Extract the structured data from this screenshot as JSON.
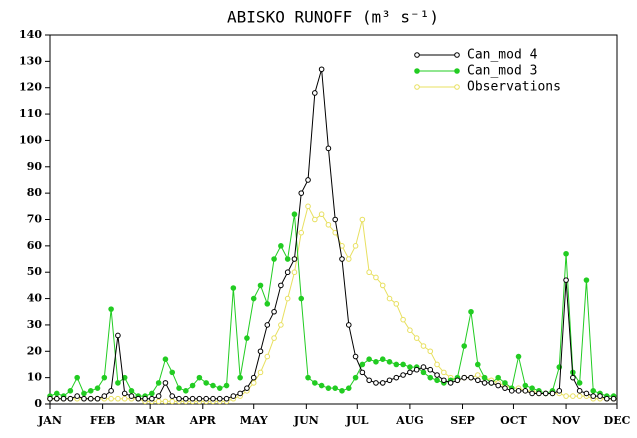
{
  "chart_data": {
    "type": "line",
    "title": "ABISKO RUNOFF (m³ s⁻¹)",
    "x": [
      1,
      5,
      9,
      13,
      17,
      21,
      25,
      29,
      33,
      37,
      41,
      45,
      49,
      53,
      57,
      61,
      65,
      69,
      73,
      77,
      81,
      85,
      89,
      93,
      97,
      101,
      105,
      109,
      113,
      117,
      121,
      125,
      129,
      133,
      137,
      141,
      145,
      149,
      153,
      157,
      161,
      165,
      169,
      173,
      177,
      181,
      185,
      189,
      193,
      197,
      201,
      205,
      209,
      213,
      217,
      221,
      225,
      229,
      233,
      237,
      241,
      245,
      249,
      253,
      257,
      261,
      265,
      269,
      273,
      277,
      281,
      285,
      289,
      293,
      297,
      301,
      305,
      309,
      313,
      317,
      321,
      325,
      329,
      333
    ],
    "series": [
      {
        "name": "Can_mod 4",
        "color": "#000000",
        "values": [
          2,
          2,
          2,
          2,
          3,
          2,
          2,
          2,
          3,
          5,
          26,
          4,
          3,
          2,
          2,
          2,
          3,
          8,
          3,
          2,
          2,
          2,
          2,
          2,
          2,
          2,
          2,
          3,
          4,
          6,
          10,
          20,
          30,
          35,
          45,
          50,
          55,
          80,
          85,
          118,
          127,
          97,
          70,
          55,
          30,
          18,
          12,
          9,
          8,
          8,
          9,
          10,
          11,
          12,
          13,
          14,
          13,
          11,
          9,
          8,
          9,
          10,
          10,
          9,
          8,
          8,
          7,
          6,
          5,
          5,
          5,
          4,
          4,
          4,
          4,
          5,
          47,
          10,
          5,
          4,
          3,
          3,
          2,
          2
        ]
      },
      {
        "name": "Can_mod 3",
        "color": "#22cc22",
        "values": [
          3,
          4,
          3,
          5,
          10,
          4,
          5,
          6,
          10,
          36,
          8,
          10,
          5,
          3,
          3,
          4,
          8,
          17,
          12,
          6,
          5,
          7,
          10,
          8,
          7,
          6,
          7,
          44,
          10,
          25,
          40,
          45,
          38,
          55,
          60,
          55,
          72,
          40,
          10,
          8,
          7,
          6,
          6,
          5,
          6,
          10,
          15,
          17,
          16,
          17,
          16,
          15,
          15,
          14,
          14,
          12,
          10,
          9,
          8,
          9,
          10,
          22,
          35,
          15,
          10,
          8,
          10,
          8,
          6,
          18,
          7,
          6,
          5,
          4,
          5,
          14,
          57,
          12,
          8,
          47,
          5,
          4,
          3,
          3
        ]
      },
      {
        "name": "Observations",
        "color": "#e8e060",
        "values": [
          2,
          2,
          2,
          2,
          2,
          2,
          2,
          2,
          2,
          2,
          2,
          2,
          2,
          2,
          1,
          1,
          1,
          1,
          1,
          1,
          1,
          1,
          1,
          1,
          1,
          1,
          1,
          2,
          3,
          5,
          8,
          12,
          18,
          25,
          30,
          40,
          50,
          65,
          75,
          70,
          72,
          68,
          65,
          60,
          55,
          60,
          70,
          50,
          48,
          45,
          40,
          38,
          32,
          28,
          25,
          22,
          20,
          15,
          12,
          10,
          9,
          10,
          10,
          11,
          10,
          9,
          8,
          7,
          6,
          6,
          5,
          5,
          4,
          4,
          4,
          4,
          3,
          3,
          3,
          3,
          2,
          2,
          2,
          2
        ]
      }
    ],
    "xlim": [
      1,
      335
    ],
    "xticks": [
      {
        "value": 1,
        "label": "JAN"
      },
      {
        "value": 32,
        "label": "FEB"
      },
      {
        "value": 60,
        "label": "MAR"
      },
      {
        "value": 91,
        "label": "APR"
      },
      {
        "value": 121,
        "label": "MAY"
      },
      {
        "value": 152,
        "label": "JUN"
      },
      {
        "value": 182,
        "label": "JUL"
      },
      {
        "value": 213,
        "label": "AUG"
      },
      {
        "value": 244,
        "label": "SEP"
      },
      {
        "value": 274,
        "label": "OCT"
      },
      {
        "value": 305,
        "label": "NOV"
      },
      {
        "value": 335,
        "label": "DEC"
      }
    ],
    "ylim": [
      0,
      140
    ],
    "yticks": [
      0,
      10,
      20,
      30,
      40,
      50,
      60,
      70,
      80,
      90,
      100,
      110,
      120,
      130,
      140
    ],
    "legend": "upper right"
  }
}
